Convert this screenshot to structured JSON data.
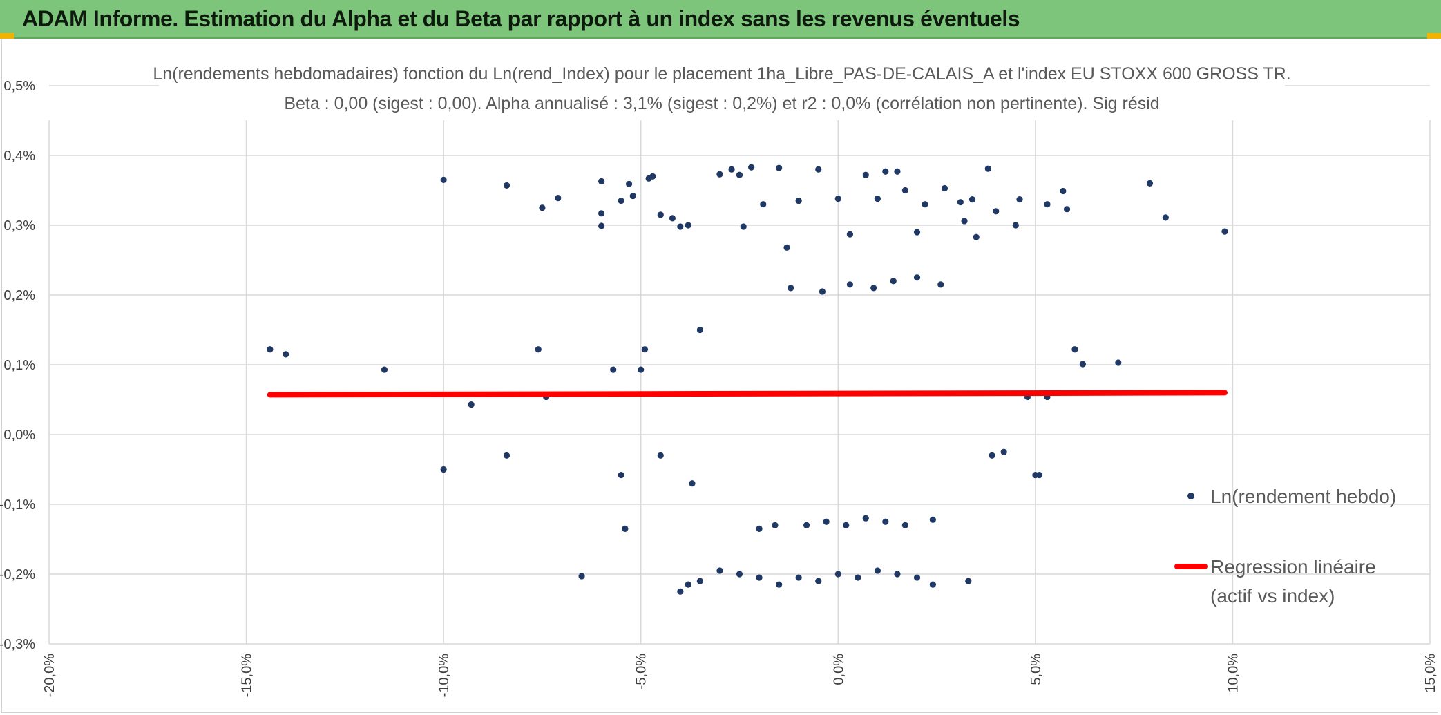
{
  "banner": {
    "title": "ADAM Informe. Estimation du Alpha et du Beta par rapport à un index sans les revenus éventuels",
    "background": "#7cc57a"
  },
  "chart_data": {
    "type": "scatter",
    "title": "Ln(rendements hebdomadaires) fonction du Ln(rend_Index) pour le placement 1ha_Libre_PAS-DE-CALAIS_A et l'index EU STOXX 600 GROSS TR.",
    "subtitle": "Beta : 0,00 (sigest : 0,00). Alpha annualisé : 3,1% (sigest : 0,2%) et r2 : 0,0% (corrélation non pertinente). Sig résid",
    "xlabel": "",
    "ylabel": "",
    "xlim": [
      -20,
      15
    ],
    "ylim": [
      -0.3,
      0.5
    ],
    "x_ticks": [
      "-20,0%",
      "-15,0%",
      "-10,0%",
      "-5,0%",
      "0,0%",
      "5,0%",
      "10,0%",
      "15,0%"
    ],
    "y_ticks": [
      "0,5%",
      "0,4%",
      "0,3%",
      "0,2%",
      "0,1%",
      "0,0%",
      "-0,1%",
      "-0,2%",
      "-0,3%"
    ],
    "grid": true,
    "legend_position": "right",
    "series": [
      {
        "name": "Ln(rendement hebdo)",
        "kind": "scatter",
        "color": "#1f3864",
        "points": [
          [
            -14.4,
            0.122
          ],
          [
            -14.0,
            0.115
          ],
          [
            -11.5,
            0.093
          ],
          [
            -10.0,
            0.365
          ],
          [
            -10.0,
            -0.05
          ],
          [
            -9.3,
            0.043
          ],
          [
            -8.4,
            0.357
          ],
          [
            -8.4,
            -0.03
          ],
          [
            -7.5,
            0.325
          ],
          [
            -7.1,
            0.339
          ],
          [
            -7.6,
            0.122
          ],
          [
            -7.4,
            0.054
          ],
          [
            -6.5,
            -0.203
          ],
          [
            -6.0,
            0.363
          ],
          [
            -6.0,
            0.299
          ],
          [
            -6.0,
            0.317
          ],
          [
            -5.7,
            0.093
          ],
          [
            -5.5,
            0.335
          ],
          [
            -5.5,
            -0.058
          ],
          [
            -5.4,
            -0.135
          ],
          [
            -5.3,
            0.359
          ],
          [
            -5.2,
            0.342
          ],
          [
            -5.0,
            0.093
          ],
          [
            -4.9,
            0.122
          ],
          [
            -4.8,
            0.367
          ],
          [
            -4.7,
            0.37
          ],
          [
            -4.5,
            0.315
          ],
          [
            -4.5,
            -0.03
          ],
          [
            -4.2,
            0.31
          ],
          [
            -4.0,
            0.298
          ],
          [
            -3.8,
            0.3
          ],
          [
            -3.7,
            -0.07
          ],
          [
            -3.5,
            0.15
          ],
          [
            -3.0,
            0.373
          ],
          [
            -2.7,
            0.38
          ],
          [
            -2.5,
            0.372
          ],
          [
            -2.4,
            0.298
          ],
          [
            -2.2,
            0.383
          ],
          [
            -1.9,
            0.33
          ],
          [
            -1.5,
            0.382
          ],
          [
            -1.3,
            0.268
          ],
          [
            -1.0,
            0.335
          ],
          [
            -0.5,
            0.38
          ],
          [
            0.0,
            0.338
          ],
          [
            0.3,
            0.287
          ],
          [
            0.7,
            0.372
          ],
          [
            1.0,
            0.338
          ],
          [
            1.2,
            0.377
          ],
          [
            1.5,
            0.377
          ],
          [
            1.7,
            0.35
          ],
          [
            2.0,
            0.29
          ],
          [
            2.2,
            0.33
          ],
          [
            2.7,
            0.353
          ],
          [
            3.1,
            0.333
          ],
          [
            3.2,
            0.306
          ],
          [
            3.4,
            0.337
          ],
          [
            3.5,
            0.283
          ],
          [
            3.8,
            0.381
          ],
          [
            4.0,
            0.32
          ],
          [
            4.5,
            0.3
          ],
          [
            4.6,
            0.337
          ],
          [
            5.3,
            0.33
          ],
          [
            5.7,
            0.349
          ],
          [
            5.8,
            0.323
          ],
          [
            6.0,
            0.122
          ],
          [
            6.2,
            0.101
          ],
          [
            7.1,
            0.103
          ],
          [
            7.9,
            0.36
          ],
          [
            8.3,
            0.311
          ],
          [
            9.8,
            0.291
          ],
          [
            5.0,
            -0.058
          ],
          [
            5.1,
            -0.058
          ],
          [
            5.3,
            0.054
          ],
          [
            4.8,
            0.054
          ],
          [
            4.2,
            -0.025
          ],
          [
            3.9,
            -0.03
          ],
          [
            3.3,
            -0.21
          ],
          [
            -4.0,
            -0.225
          ],
          [
            -3.8,
            -0.215
          ],
          [
            -3.5,
            -0.21
          ],
          [
            -3.0,
            -0.195
          ],
          [
            -2.5,
            -0.2
          ],
          [
            -2.0,
            -0.205
          ],
          [
            -1.5,
            -0.215
          ],
          [
            -1.0,
            -0.205
          ],
          [
            -0.5,
            -0.21
          ],
          [
            0.0,
            -0.2
          ],
          [
            0.5,
            -0.205
          ],
          [
            1.0,
            -0.195
          ],
          [
            1.5,
            -0.2
          ],
          [
            2.0,
            -0.205
          ],
          [
            2.4,
            -0.215
          ],
          [
            -2.0,
            -0.135
          ],
          [
            -1.6,
            -0.13
          ],
          [
            -0.8,
            -0.13
          ],
          [
            -0.3,
            -0.125
          ],
          [
            0.2,
            -0.13
          ],
          [
            0.7,
            -0.12
          ],
          [
            1.2,
            -0.125
          ],
          [
            1.7,
            -0.13
          ],
          [
            2.4,
            -0.122
          ],
          [
            -1.2,
            0.21
          ],
          [
            -0.4,
            0.205
          ],
          [
            0.3,
            0.215
          ],
          [
            0.9,
            0.21
          ],
          [
            1.4,
            0.22
          ],
          [
            2.0,
            0.225
          ],
          [
            2.6,
            0.215
          ]
        ]
      },
      {
        "name": "Regression linéaire (actif vs index)",
        "kind": "line",
        "color": "#ff0000",
        "x": [
          -14.4,
          9.8
        ],
        "y": [
          0.057,
          0.06
        ]
      }
    ]
  }
}
